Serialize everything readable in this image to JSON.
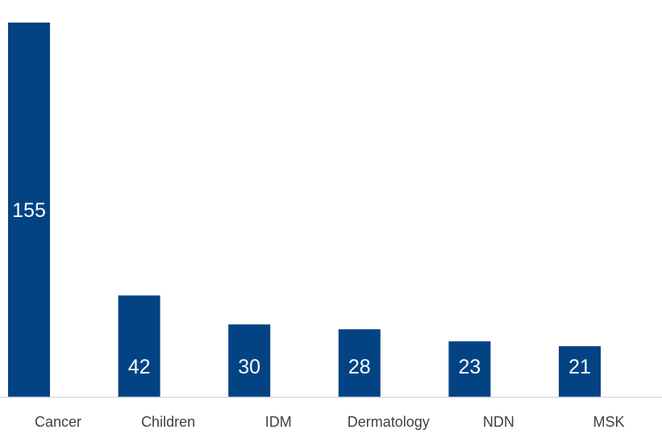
{
  "chart_data": {
    "type": "bar",
    "categories": [
      "Cancer",
      "Children",
      "IDM",
      "Dermatology",
      "NDN",
      "MSK"
    ],
    "values": [
      155,
      42,
      30,
      28,
      23,
      21
    ],
    "title": "",
    "xlabel": "",
    "ylabel": "",
    "ylim": [
      0,
      160
    ],
    "grid": false,
    "legend": "none",
    "data_labels": "inside",
    "colors": {
      "bar": "#034384",
      "bar_label": "#ffffff",
      "axis": "#d9d9d9",
      "category_label": "#404040"
    }
  }
}
